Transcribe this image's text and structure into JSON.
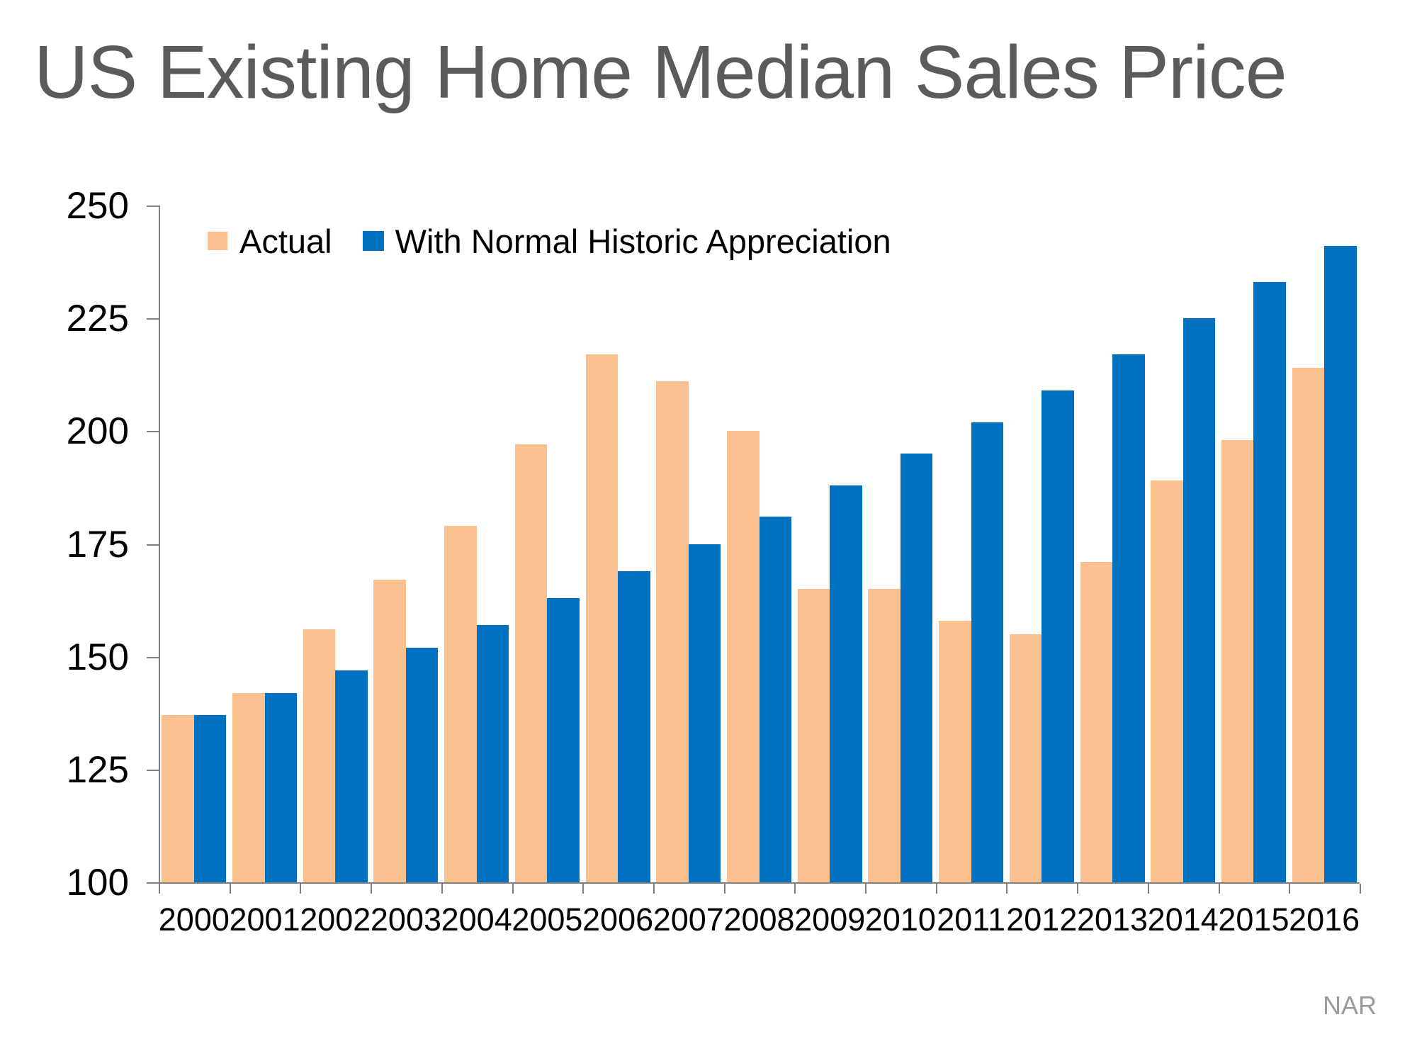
{
  "title": "US Existing Home Median Sales Price",
  "source": "NAR",
  "legend": {
    "items": [
      {
        "label": "Actual",
        "color": "#FAC090"
      },
      {
        "label": "With Normal Historic Appreciation",
        "color": "#0070C0"
      }
    ]
  },
  "chart_data": {
    "type": "bar",
    "title": "US Existing Home Median Sales Price",
    "categories": [
      "2000",
      "2001",
      "2002",
      "2003",
      "2004",
      "2005",
      "2006",
      "2007",
      "2008",
      "2009",
      "2010",
      "2011",
      "2012",
      "2013",
      "2014",
      "2015",
      "2016"
    ],
    "series": [
      {
        "name": "Actual",
        "color": "#FAC090",
        "values": [
          137,
          142,
          156,
          167,
          179,
          197,
          217,
          211,
          200,
          165,
          165,
          158,
          155,
          171,
          189,
          198,
          214
        ]
      },
      {
        "name": "With Normal Historic Appreciation",
        "color": "#0070C0",
        "values": [
          137,
          142,
          147,
          152,
          157,
          163,
          169,
          175,
          181,
          188,
          195,
          202,
          209,
          217,
          225,
          233,
          241
        ]
      }
    ],
    "xlabel": "",
    "ylabel": "",
    "ylim": [
      100,
      250
    ],
    "yticks": [
      100,
      125,
      150,
      175,
      200,
      225,
      250
    ],
    "grid": false,
    "legend_position": "top-left",
    "source_label": "NAR"
  }
}
